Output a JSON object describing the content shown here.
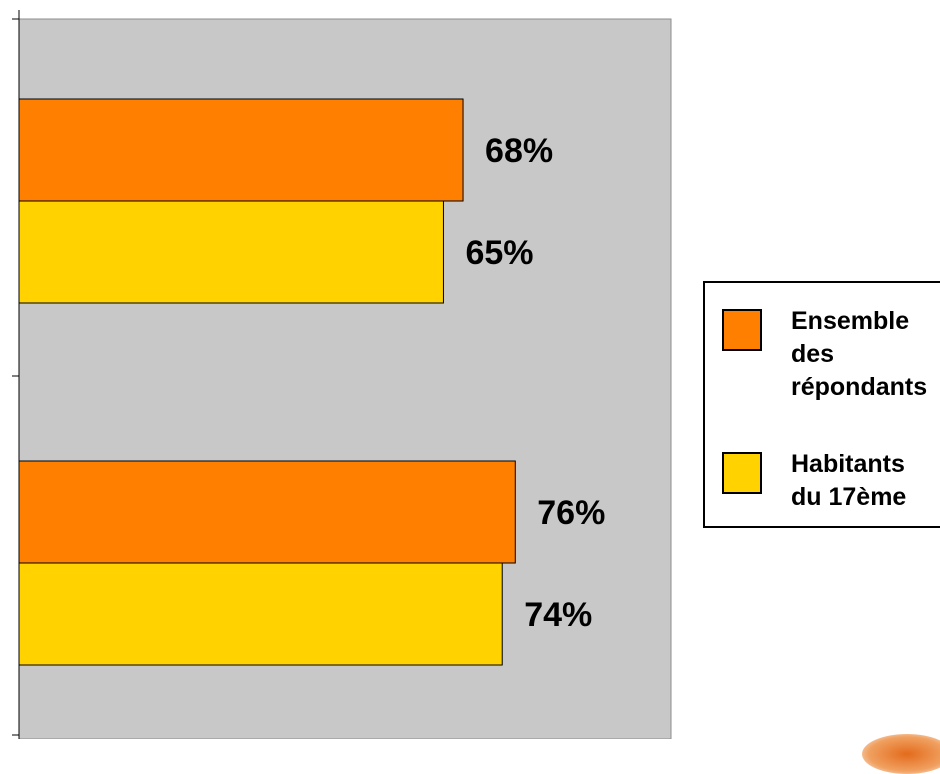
{
  "chart_data": {
    "type": "bar",
    "orientation": "horizontal",
    "categories": [
      "",
      ""
    ],
    "series": [
      {
        "name": "Ensemble des répondants",
        "color": "#FF7F00",
        "values": [
          68,
          76
        ],
        "labels": [
          "68%",
          "76%"
        ]
      },
      {
        "name": "Habitants du 17ème",
        "color": "#FFD200",
        "values": [
          65,
          74
        ],
        "labels": [
          "65%",
          "74%"
        ]
      }
    ],
    "xlim": [
      0,
      100
    ],
    "unit": "%",
    "plot_background": "#C8C8C8",
    "grid": false,
    "legend_position": "right"
  }
}
